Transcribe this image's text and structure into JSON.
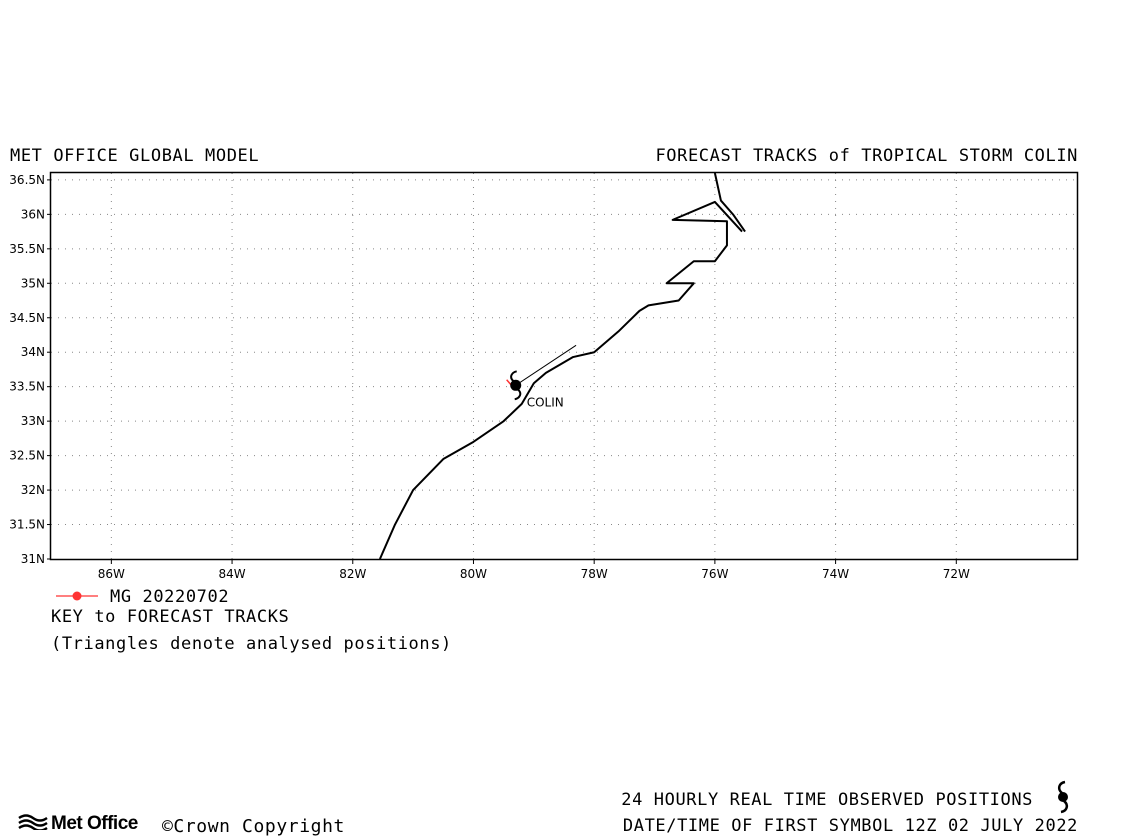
{
  "header": {
    "left_title": "MET OFFICE GLOBAL MODEL",
    "right_title": "FORECAST TRACKS of TROPICAL STORM COLIN"
  },
  "map": {
    "lon_range": [
      -87.0,
      -70.0
    ],
    "lat_range": [
      31.0,
      36.6
    ],
    "lat_ticks": [
      {
        "value": 31.0,
        "label": "31N"
      },
      {
        "value": 31.5,
        "label": "31.5N"
      },
      {
        "value": 32.0,
        "label": "32N"
      },
      {
        "value": 32.5,
        "label": "32.5N"
      },
      {
        "value": 33.0,
        "label": "33N"
      },
      {
        "value": 33.5,
        "label": "33.5N"
      },
      {
        "value": 34.0,
        "label": "34N"
      },
      {
        "value": 34.5,
        "label": "34.5N"
      },
      {
        "value": 35.0,
        "label": "35N"
      },
      {
        "value": 35.5,
        "label": "35.5N"
      },
      {
        "value": 36.0,
        "label": "36N"
      },
      {
        "value": 36.5,
        "label": "36.5N"
      }
    ],
    "lon_ticks": [
      {
        "value": -86,
        "label": "86W"
      },
      {
        "value": -84,
        "label": "84W"
      },
      {
        "value": -82,
        "label": "82W"
      },
      {
        "value": -80,
        "label": "80W"
      },
      {
        "value": -78,
        "label": "78W"
      },
      {
        "value": -76,
        "label": "76W"
      },
      {
        "value": -74,
        "label": "74W"
      },
      {
        "value": -72,
        "label": "72W"
      }
    ],
    "grid": true,
    "coastline_color": "#000000",
    "coastline": [
      [
        [
          -81.55,
          31.0
        ],
        [
          -81.3,
          31.5
        ],
        [
          -81.0,
          32.0
        ],
        [
          -80.5,
          32.45
        ],
        [
          -80.0,
          32.7
        ],
        [
          -79.5,
          33.0
        ],
        [
          -79.2,
          33.25
        ],
        [
          -79.0,
          33.55
        ],
        [
          -78.8,
          33.7
        ],
        [
          -78.35,
          33.93
        ],
        [
          -78.0,
          34.0
        ],
        [
          -77.6,
          34.3
        ],
        [
          -77.25,
          34.6
        ],
        [
          -77.1,
          34.68
        ],
        [
          -76.6,
          34.75
        ],
        [
          -76.35,
          35.0
        ],
        [
          -76.8,
          35.0
        ],
        [
          -76.35,
          35.32
        ],
        [
          -76.0,
          35.32
        ],
        [
          -75.8,
          35.55
        ],
        [
          -75.8,
          35.9
        ],
        [
          -76.7,
          35.92
        ],
        [
          -76.0,
          36.18
        ],
        [
          -75.55,
          35.75
        ]
      ],
      [
        [
          -76.0,
          36.6
        ],
        [
          -75.9,
          36.2
        ],
        [
          -75.7,
          36.0
        ],
        [
          -75.5,
          35.75
        ]
      ]
    ],
    "tracks": [
      {
        "name": "MG 20220702",
        "color": "#ff3333",
        "points": [
          [
            -79.35,
            33.5
          ],
          [
            -79.4,
            33.55
          ],
          [
            -79.45,
            33.6
          ]
        ]
      }
    ],
    "forecast_line": [
      [
        -79.3,
        33.52
      ],
      [
        -78.3,
        34.1
      ]
    ],
    "storm": {
      "label": "COLIN",
      "lon": -79.3,
      "lat": 33.52
    }
  },
  "legend": {
    "track_label": "MG 20220702",
    "key_title": "KEY to FORECAST TRACKS",
    "note": "(Triangles denote analysed positions)"
  },
  "footer": {
    "logo_text": "Met Office",
    "copyright": "©Crown Copyright",
    "observed": "24 HOURLY REAL TIME OBSERVED POSITIONS",
    "datetime": "DATE/TIME OF FIRST SYMBOL 12Z 02 JULY 2022"
  }
}
